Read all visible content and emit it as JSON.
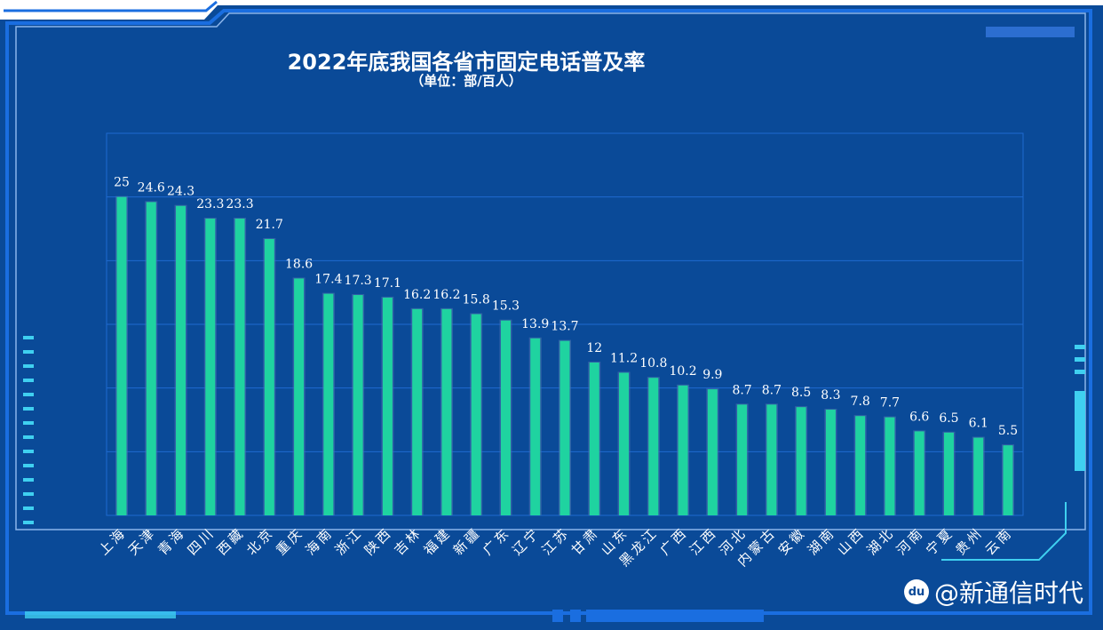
{
  "colors": {
    "background": "#0a4a98",
    "bar": "#1fd3a0",
    "grid": "#1f6ad0",
    "text": "#ffffff"
  },
  "watermark": "@新通信时代",
  "chart_data": {
    "type": "bar",
    "title": "2022年底我国各省市固定电话普及率",
    "subtitle": "（单位：部/百人）",
    "categories": [
      "上海",
      "天津",
      "青海",
      "四川",
      "西藏",
      "北京",
      "重庆",
      "海南",
      "浙江",
      "陕西",
      "吉林",
      "福建",
      "新疆",
      "广东",
      "辽宁",
      "江苏",
      "甘肃",
      "山东",
      "黑龙江",
      "广西",
      "江西",
      "河北",
      "内蒙古",
      "安徽",
      "湖南",
      "山西",
      "湖北",
      "河南",
      "宁夏",
      "贵州",
      "云南"
    ],
    "values": [
      25,
      24.6,
      24.3,
      23.3,
      23.3,
      21.7,
      18.6,
      17.4,
      17.3,
      17.1,
      16.2,
      16.2,
      15.8,
      15.3,
      13.9,
      13.7,
      12,
      11.2,
      10.8,
      10.2,
      9.9,
      8.7,
      8.7,
      8.5,
      8.3,
      7.8,
      7.7,
      6.6,
      6.5,
      6.1,
      5.5
    ],
    "ylim": [
      0,
      30
    ],
    "grid": true,
    "ytick_step": 5
  }
}
